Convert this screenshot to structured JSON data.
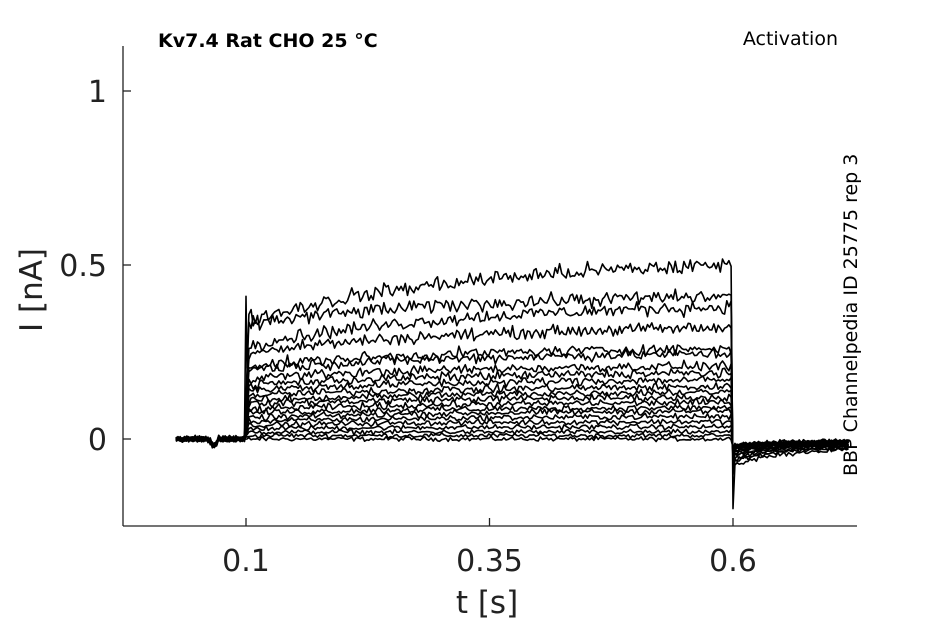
{
  "chart_data": {
    "type": "line",
    "title": "Kv7.4  Rat  CHO  25 °C",
    "protocol": "Activation",
    "source": "BBP Channelpedia ID 25775 rep 3",
    "xlabel": "t [s]",
    "ylabel": "I [nA]",
    "xlim": [
      -0.0,
      0.75
    ],
    "ylim": [
      -0.25,
      1.13
    ],
    "x_ticks": [
      0.1,
      0.35,
      0.6
    ],
    "x_tick_labels": [
      "0.1",
      "0.35",
      "0.6"
    ],
    "y_ticks": [
      0,
      0.5,
      1
    ],
    "y_tick_labels": [
      "0",
      "0.5",
      "1"
    ],
    "grid": false,
    "legend": "none",
    "line_color": "#000000",
    "pulse_start_s": 0.1,
    "pulse_end_s": 0.6,
    "trace_start_s": 0.028,
    "trace_end_s": 0.72,
    "series_end_current_nA": [
      0.0,
      0.01,
      0.02,
      0.035,
      0.05,
      0.065,
      0.08,
      0.09,
      0.105,
      0.12,
      0.135,
      0.15,
      0.17,
      0.19,
      0.21,
      0.245,
      0.26,
      0.32,
      0.38,
      0.41,
      0.5
    ],
    "series_onset_current_nA": [
      0.0,
      0.01,
      0.02,
      0.03,
      0.04,
      0.05,
      0.06,
      0.075,
      0.085,
      0.1,
      0.11,
      0.125,
      0.14,
      0.155,
      0.175,
      0.2,
      0.21,
      0.25,
      0.27,
      0.33,
      0.34
    ],
    "onset_transient_nA": 0.41,
    "offset_transient_nA": -0.2
  }
}
